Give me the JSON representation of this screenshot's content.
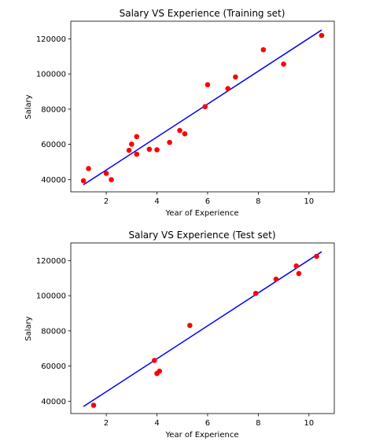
{
  "chart_data": [
    {
      "type": "scatter",
      "title": "Salary VS Experience (Training set)",
      "xlabel": "Year of Experience",
      "ylabel": "Salary",
      "xlim": [
        0.6,
        11.0
      ],
      "ylim": [
        33000,
        130000
      ],
      "xticks": [
        2,
        4,
        6,
        8,
        10
      ],
      "yticks": [
        40000,
        60000,
        80000,
        100000,
        120000
      ],
      "points_color": "#ff0000",
      "line_color": "#0000ff",
      "points": [
        [
          1.1,
          39300
        ],
        [
          1.3,
          46200
        ],
        [
          2.0,
          43500
        ],
        [
          2.2,
          39900
        ],
        [
          2.9,
          56600
        ],
        [
          3.0,
          60100
        ],
        [
          3.2,
          54400
        ],
        [
          3.2,
          64400
        ],
        [
          3.7,
          57200
        ],
        [
          4.0,
          56900
        ],
        [
          4.5,
          61100
        ],
        [
          4.9,
          67900
        ],
        [
          5.1,
          66000
        ],
        [
          5.9,
          81400
        ],
        [
          6.0,
          93900
        ],
        [
          6.8,
          91700
        ],
        [
          7.1,
          98300
        ],
        [
          8.2,
          113800
        ],
        [
          9.0,
          105600
        ],
        [
          10.5,
          121900
        ]
      ],
      "fit_line": [
        [
          1.1,
          37000
        ],
        [
          10.5,
          125000
        ]
      ]
    },
    {
      "type": "scatter",
      "title": "Salary VS Experience (Test set)",
      "xlabel": "Year of Experience",
      "ylabel": "Salary",
      "xlim": [
        0.6,
        11.0
      ],
      "ylim": [
        33000,
        130000
      ],
      "xticks": [
        2,
        4,
        6,
        8,
        10
      ],
      "yticks": [
        40000,
        60000,
        80000,
        100000,
        120000
      ],
      "points_color": "#ff0000",
      "line_color": "#0000ff",
      "points": [
        [
          1.5,
          37700
        ],
        [
          3.9,
          63200
        ],
        [
          4.0,
          55800
        ],
        [
          4.1,
          57100
        ],
        [
          5.3,
          83100
        ],
        [
          7.9,
          101300
        ],
        [
          8.7,
          109400
        ],
        [
          9.5,
          116900
        ],
        [
          9.6,
          112600
        ],
        [
          10.3,
          122400
        ]
      ],
      "fit_line": [
        [
          1.1,
          37000
        ],
        [
          10.5,
          125000
        ]
      ]
    }
  ]
}
